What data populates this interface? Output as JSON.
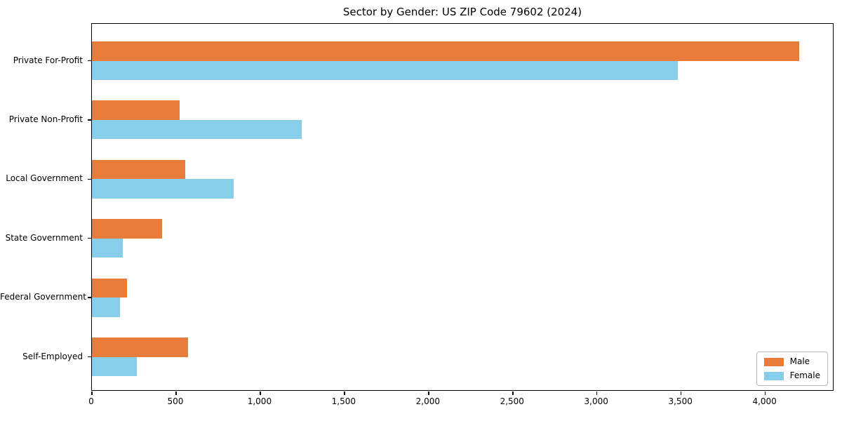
{
  "chart_data": {
    "type": "bar",
    "orientation": "horizontal",
    "title": "Sector by Gender: US ZIP Code 79602 (2024)",
    "xlabel": "",
    "ylabel": "",
    "categories": [
      "Private For-Profit",
      "Private Non-Profit",
      "Local Government",
      "State Government",
      "Federal Government",
      "Self-Employed"
    ],
    "series": [
      {
        "name": "Male",
        "color": "#e87d3b",
        "values": [
          4200,
          520,
          555,
          415,
          210,
          570
        ]
      },
      {
        "name": "Female",
        "color": "#87ceeb",
        "values": [
          3480,
          1245,
          840,
          185,
          165,
          265
        ]
      }
    ],
    "xlim": [
      0,
      4410
    ],
    "xticks": [
      0,
      500,
      1000,
      1500,
      2000,
      2500,
      3000,
      3500,
      4000
    ],
    "grid": false,
    "legend_position": "lower right"
  }
}
